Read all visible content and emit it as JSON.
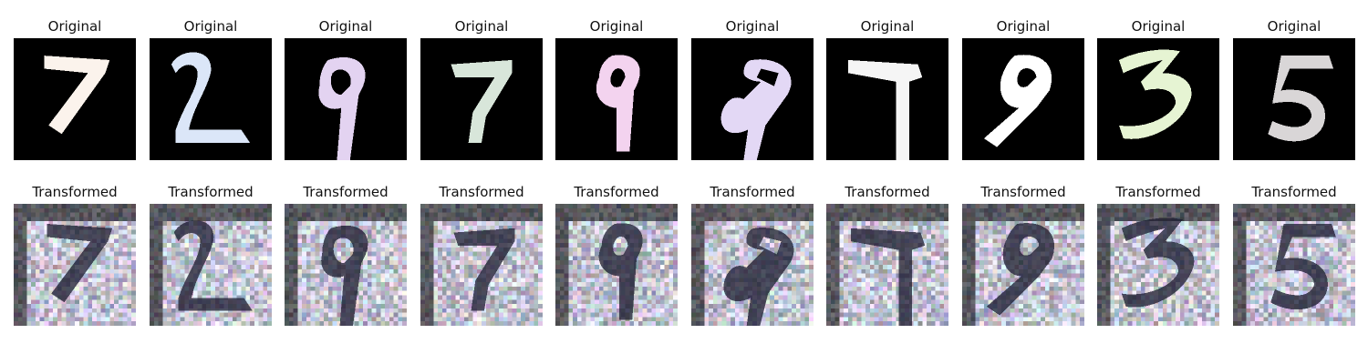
{
  "figure": {
    "originals": [
      {
        "title": "Original",
        "digit": "7",
        "color": "#fbf3ec"
      },
      {
        "title": "Original",
        "digit": "2",
        "color": "#dbe6f8"
      },
      {
        "title": "Original",
        "digit": "9",
        "color": "#e3d3f1"
      },
      {
        "title": "Original",
        "digit": "7",
        "color": "#d8e6da"
      },
      {
        "title": "Original",
        "digit": "9",
        "color": "#f3d3ef"
      },
      {
        "title": "Original",
        "digit": "9",
        "color": "#e3d8f5"
      },
      {
        "title": "Original",
        "digit": "7",
        "color": "#f5f5f5"
      },
      {
        "title": "Original",
        "digit": "9",
        "color": "#ffffff"
      },
      {
        "title": "Original",
        "digit": "3",
        "color": "#e6f4d3"
      },
      {
        "title": "Original",
        "digit": "5",
        "color": "#d9d6d7"
      }
    ],
    "transformed": [
      {
        "title": "Transformed"
      },
      {
        "title": "Transformed"
      },
      {
        "title": "Transformed"
      },
      {
        "title": "Transformed"
      },
      {
        "title": "Transformed"
      },
      {
        "title": "Transformed"
      },
      {
        "title": "Transformed"
      },
      {
        "title": "Transformed"
      },
      {
        "title": "Transformed"
      },
      {
        "title": "Transformed"
      }
    ]
  }
}
